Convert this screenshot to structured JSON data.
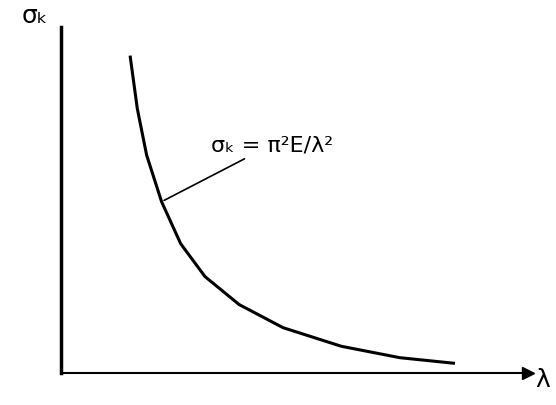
{
  "chart_data": {
    "type": "line",
    "x_label": "λ",
    "y_label": "σₖ",
    "annotation": "σₖ = π²E/λ²",
    "x": [
      1.48,
      1.63,
      1.83,
      2.15,
      2.56,
      3.08,
      3.81,
      4.75,
      6.0,
      7.25,
      8.4
    ],
    "values": [
      9.14,
      7.65,
      6.3,
      4.95,
      3.73,
      2.78,
      1.97,
      1.3,
      0.76,
      0.43,
      0.27
    ],
    "color": "#000000",
    "xlim": [
      0,
      10
    ],
    "ylim": [
      0,
      10
    ],
    "xticks": [],
    "yticks": [],
    "tick_labels": false,
    "grid": false
  }
}
